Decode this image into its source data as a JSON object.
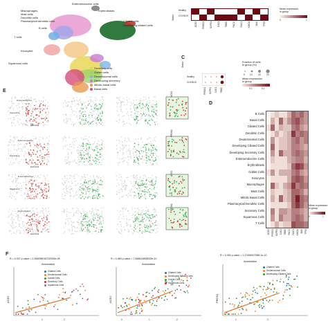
{
  "panelA": {
    "celltypes_left": [
      "Macrophages",
      "Mast cells",
      "Dendritic cells",
      "Plasmacytoid dendritic cells",
      "B cells",
      "T cells",
      "Kinocytes",
      "Squamous cells"
    ],
    "celltypes_top": [
      "Enteroendocrine cells",
      "Erythroblasts"
    ],
    "celltypes_right": [
      "Ciliated cells",
      "Developing ciliated cells"
    ],
    "legend_items": [
      {
        "label": "Secretory cells",
        "color": "#e8d44d"
      },
      {
        "label": "Goblet cells",
        "color": "#9bd46b"
      },
      {
        "label": "Deuterosomal cells",
        "color": "#7fb5e8"
      },
      {
        "label": "Developing secretory",
        "color": "#c77ad6"
      },
      {
        "label": "Mitotic basal cells",
        "color": "#e89a4d"
      },
      {
        "label": "Basal cells",
        "color": "#d64d7a"
      }
    ]
  },
  "panelB": {
    "rows": [
      "Healthy",
      "COVID19"
    ],
    "status_label": "Status",
    "genes": [
      "ACE2",
      "PROS1",
      "S1PR1",
      "CAV1",
      "TBBD",
      "PACC",
      "RAC1",
      "KMGA",
      "BAX",
      "TP53"
    ],
    "legend_title": "Mean expression\nin group",
    "legend_ticks": [
      "0",
      "1"
    ]
  },
  "panelC": {
    "letter": "C",
    "rows": [
      "Healthy",
      "COVID19"
    ],
    "genes": [
      "PROS1",
      "S1PR1",
      "CAV1",
      "TBBD"
    ],
    "status_label": "Status",
    "size_title": "Fraction of cells\nin group (%)",
    "size_ticks": [
      "5",
      "10",
      "15",
      "20"
    ],
    "color_title": "Mean expression\nin group",
    "color_ticks": [
      "0.1",
      "0.2"
    ]
  },
  "panelD": {
    "letter": "D",
    "rows": [
      "B Cells",
      "Basal Cells",
      "Ciliated Cells",
      "Dendritic Cells",
      "Deuterosomal Cells",
      "Developing Ciliated Cells",
      "Developing Secretory Cells",
      "Enteroendocrine Cells",
      "Erythroblasts",
      "Goblet Cells",
      "Kinocytes",
      "Macrophages",
      "Mast Cells",
      "Mitotic Basal Cells",
      "Plasmacytoid Dendritic Cells",
      "Secretory Cells",
      "Squamous Cells",
      "T Cells"
    ],
    "genes": [
      "ACE2",
      "PROS1",
      "S1PR1",
      "CAV1",
      "TBBD",
      "PACC",
      "RAC1",
      "KMGA",
      "BAX",
      "TP53"
    ],
    "legend_title": "Mean expression\nin group",
    "legend_ticks": [
      "0",
      "1"
    ],
    "values": [
      [
        0,
        0.1,
        0.2,
        0.1,
        0.1,
        0.3,
        0.6,
        0.5,
        0.6,
        0.4
      ],
      [
        0,
        0.3,
        0.1,
        0.6,
        0.2,
        0.4,
        0.6,
        0.7,
        0.5,
        0.4
      ],
      [
        0.1,
        0.6,
        0.1,
        0.3,
        0.2,
        0.2,
        0.5,
        0.6,
        0.4,
        0.3
      ],
      [
        0,
        0.1,
        0.3,
        0.1,
        0.2,
        0.3,
        0.8,
        0.5,
        0.6,
        0.5
      ],
      [
        0,
        0.4,
        0.1,
        0.2,
        0.2,
        0.3,
        0.5,
        0.6,
        0.4,
        0.5
      ],
      [
        0,
        0.6,
        0.1,
        0.2,
        0.2,
        0.3,
        0.5,
        0.5,
        0.4,
        0.3
      ],
      [
        0,
        0.4,
        0.1,
        0.6,
        0.3,
        0.3,
        0.5,
        0.6,
        0.5,
        0.4
      ],
      [
        0,
        0.2,
        0.1,
        0.1,
        0.1,
        0.3,
        0.4,
        0.5,
        0.5,
        0.3
      ],
      [
        0,
        0.1,
        0.1,
        0.1,
        0.1,
        0.2,
        0.6,
        0.8,
        0.7,
        0.4
      ],
      [
        0.1,
        0.4,
        0.1,
        0.3,
        0.3,
        0.3,
        0.5,
        0.6,
        0.4,
        0.3
      ],
      [
        0,
        0.1,
        0.1,
        0.1,
        0.1,
        0.3,
        0.6,
        0.7,
        0.6,
        0.4
      ],
      [
        0,
        0.6,
        0.2,
        0.1,
        0.3,
        0.4,
        0.8,
        0.5,
        0.6,
        0.5
      ],
      [
        0,
        0.2,
        0.1,
        0.1,
        0.2,
        0.3,
        0.6,
        0.6,
        0.5,
        0.3
      ],
      [
        0,
        0.3,
        0.1,
        0.6,
        0.2,
        0.3,
        0.6,
        0.9,
        0.6,
        0.5
      ],
      [
        0,
        0.1,
        0.1,
        0.1,
        0.1,
        0.2,
        0.6,
        0.8,
        0.6,
        0.4
      ],
      [
        0,
        0.5,
        0.1,
        0.4,
        0.4,
        0.3,
        0.5,
        0.5,
        0.4,
        0.3
      ],
      [
        0,
        0.4,
        0.1,
        0.5,
        0.3,
        0.3,
        0.5,
        0.6,
        0.5,
        0.3
      ],
      [
        0,
        0.1,
        0.3,
        0.1,
        0.2,
        0.2,
        0.7,
        0.6,
        0.6,
        0.5
      ]
    ]
  },
  "panelE": {
    "letter": "E",
    "umap_labels": [
      "Enteroendocrine",
      "Erythroblasts",
      "Ciliated",
      "Squamous",
      "Epithelial"
    ],
    "side_labels": [
      "ACE2",
      "PROS1",
      "ACE2",
      "PROS1"
    ],
    "colors": {
      "red": "#d1352b",
      "green": "#2fae4a",
      "gray": "#cfcfcf"
    }
  },
  "panelF": {
    "letter": "F",
    "plots": [
      {
        "stat": "R = 0.037  p value = 2.266058016732928e-08",
        "title": "Annotation",
        "ylabel": "ACE2",
        "xticks": [
          "1",
          "2"
        ],
        "legend": [
          {
            "label": "Ciliated Cells",
            "color": "#1f77b4"
          },
          {
            "label": "Deuterosomal Cells",
            "color": "#ff7f0e"
          },
          {
            "label": "Goblet Cells",
            "color": "#2ca02c"
          },
          {
            "label": "Secretory Cells",
            "color": "#d62728"
          },
          {
            "label": "Squamous Cells",
            "color": "#9467bd"
          }
        ]
      },
      {
        "stat": "R = 0.469  p value = 7.568619806533e-10",
        "title": "Annotation",
        "ylabel": "ACE2",
        "xticks": [
          "0",
          "1",
          "2"
        ],
        "legend": [
          {
            "label": "Ciliated Cells",
            "color": "#1f77b4"
          },
          {
            "label": "Developing Ciliated Cells",
            "color": "#ff7f0e"
          },
          {
            "label": "Goblet Cells",
            "color": "#2ca02c"
          },
          {
            "label": "Squamous Cells",
            "color": "#d62728"
          }
        ]
      },
      {
        "stat": "R = 0.494  p value = 1.27455927988 1e-10",
        "title": "Annotation",
        "ylabel": "PROS1",
        "xticks": [
          "1",
          "2"
        ],
        "legend": [
          {
            "label": "Ciliated Cells",
            "color": "#1f77b4"
          },
          {
            "label": "Deuterosomal Cells",
            "color": "#ff7f0e"
          },
          {
            "label": "Developing Ciliated Cells",
            "color": "#2ca02c"
          }
        ]
      }
    ]
  }
}
